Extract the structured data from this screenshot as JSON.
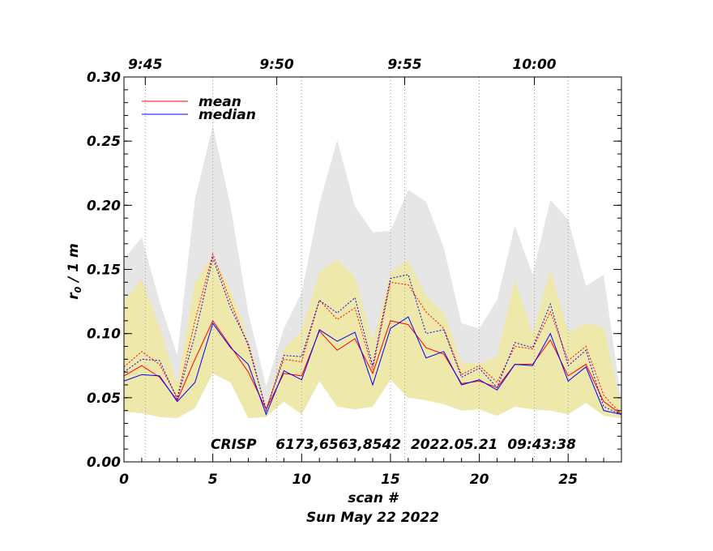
{
  "chart_data": {
    "type": "line",
    "xlabel": "scan #",
    "ylabel": "r",
    "ylabel_sub": "0",
    "ylabel_suffix": " / 1 m",
    "date_label": "Sun May 22 2022",
    "annotation": "CRISP    6173,6563,8542  2022.05.21  09:43:38",
    "xlim": [
      0,
      28
    ],
    "ylim": [
      0.0,
      0.3
    ],
    "x_ticks": [
      0,
      5,
      10,
      15,
      20,
      25
    ],
    "x_tick_labels": [
      "0",
      "5",
      "10",
      "15",
      "20",
      "25"
    ],
    "y_ticks": [
      0.0,
      0.05,
      0.1,
      0.15,
      0.2,
      0.25,
      0.3
    ],
    "y_tick_labels": [
      "0.00",
      "0.05",
      "0.10",
      "0.15",
      "0.20",
      "0.25",
      "0.30"
    ],
    "top_axis": {
      "ticks": [
        1.2,
        8.6,
        15.8,
        23.1
      ],
      "labels": [
        "9:45",
        "9:50",
        "9:55",
        "10:00"
      ]
    },
    "legend": {
      "placement": "top-left",
      "entries": [
        "mean",
        "median"
      ]
    },
    "colors": {
      "mean": "#ff0000",
      "median": "#0000ff",
      "outer_band": "#e6e6e6",
      "inner_band": "#eee8aa"
    },
    "x": [
      0,
      1,
      2,
      3,
      4,
      5,
      6,
      7,
      8,
      9,
      10,
      11,
      12,
      13,
      14,
      15,
      16,
      17,
      18,
      19,
      20,
      21,
      22,
      23,
      24,
      25,
      26,
      27,
      28
    ],
    "series": [
      {
        "name": "mean",
        "style": "solid",
        "values": [
          0.067,
          0.075,
          0.066,
          0.048,
          0.08,
          0.11,
          0.09,
          0.07,
          0.041,
          0.069,
          0.067,
          0.102,
          0.087,
          0.096,
          0.069,
          0.11,
          0.107,
          0.089,
          0.084,
          0.061,
          0.063,
          0.058,
          0.076,
          0.076,
          0.095,
          0.067,
          0.076,
          0.047,
          0.037
        ]
      },
      {
        "name": "median",
        "style": "solid",
        "values": [
          0.063,
          0.068,
          0.067,
          0.047,
          0.062,
          0.108,
          0.089,
          0.076,
          0.037,
          0.071,
          0.064,
          0.103,
          0.094,
          0.101,
          0.06,
          0.104,
          0.113,
          0.081,
          0.086,
          0.06,
          0.064,
          0.056,
          0.076,
          0.075,
          0.1,
          0.063,
          0.074,
          0.04,
          0.037
        ]
      },
      {
        "name": "mean",
        "style": "dotted",
        "values": [
          0.074,
          0.086,
          0.076,
          0.05,
          0.11,
          0.162,
          0.125,
          0.09,
          0.041,
          0.08,
          0.078,
          0.126,
          0.111,
          0.12,
          0.072,
          0.14,
          0.138,
          0.117,
          0.104,
          0.068,
          0.075,
          0.062,
          0.09,
          0.088,
          0.117,
          0.079,
          0.09,
          0.052,
          0.037
        ]
      },
      {
        "name": "median",
        "style": "dotted",
        "values": [
          0.07,
          0.08,
          0.079,
          0.049,
          0.099,
          0.159,
          0.12,
          0.092,
          0.04,
          0.083,
          0.082,
          0.126,
          0.116,
          0.128,
          0.075,
          0.143,
          0.146,
          0.1,
          0.103,
          0.066,
          0.073,
          0.058,
          0.093,
          0.089,
          0.123,
          0.075,
          0.087,
          0.043,
          0.037
        ]
      }
    ],
    "bands": [
      {
        "role": "outer",
        "upper": [
          0.158,
          0.175,
          0.125,
          0.083,
          0.205,
          0.262,
          0.199,
          0.116,
          0.059,
          0.104,
          0.132,
          0.201,
          0.251,
          0.199,
          0.179,
          0.18,
          0.212,
          0.203,
          0.167,
          0.108,
          0.104,
          0.126,
          0.184,
          0.146,
          0.204,
          0.189,
          0.137,
          0.146,
          0.047
        ],
        "lower": [
          0.039,
          0.038,
          0.035,
          0.034,
          0.042,
          0.069,
          0.062,
          0.034,
          0.035,
          0.047,
          0.037,
          0.063,
          0.043,
          0.041,
          0.043,
          0.064,
          0.05,
          0.048,
          0.045,
          0.04,
          0.041,
          0.036,
          0.043,
          0.041,
          0.04,
          0.037,
          0.046,
          0.036,
          0.034
        ]
      },
      {
        "role": "inner",
        "upper": [
          0.125,
          0.143,
          0.105,
          0.06,
          0.14,
          0.161,
          0.134,
          0.096,
          0.045,
          0.088,
          0.102,
          0.148,
          0.158,
          0.144,
          0.094,
          0.148,
          0.157,
          0.13,
          0.116,
          0.078,
          0.076,
          0.082,
          0.142,
          0.1,
          0.15,
          0.101,
          0.108,
          0.105,
          0.043
        ],
        "lower": [
          0.039,
          0.038,
          0.035,
          0.034,
          0.042,
          0.069,
          0.062,
          0.034,
          0.035,
          0.047,
          0.037,
          0.063,
          0.043,
          0.041,
          0.043,
          0.064,
          0.05,
          0.048,
          0.045,
          0.04,
          0.041,
          0.036,
          0.043,
          0.041,
          0.04,
          0.037,
          0.046,
          0.036,
          0.034
        ]
      }
    ]
  }
}
